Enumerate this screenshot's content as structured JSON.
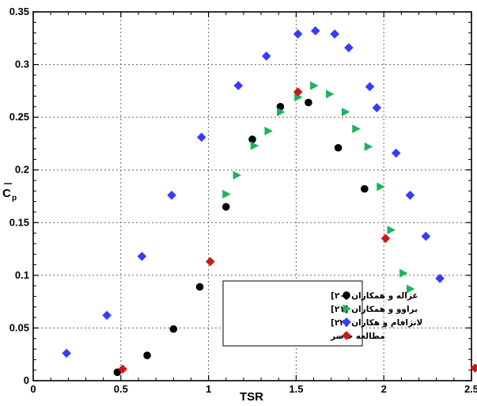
{
  "chart_data": {
    "type": "scatter",
    "xlabel": "TSR",
    "ylabel_main": "C",
    "ylabel_sub": "p",
    "xlim": [
      0,
      2.5
    ],
    "ylim": [
      0,
      0.35
    ],
    "xticks": [
      "0",
      "0.5",
      "1",
      "1.5",
      "2",
      "2.5"
    ],
    "yticks": [
      "0",
      "0.05",
      "0.1",
      "0.15",
      "0.2",
      "0.25",
      "0.3",
      "0.35"
    ],
    "grid": true,
    "legend_position": "bottom-center",
    "series": [
      {
        "name": "غزاله و همکاران [۲۰]",
        "marker": "circle",
        "color": "#000000",
        "points": [
          [
            0.48,
            0.008
          ],
          [
            0.65,
            0.024
          ],
          [
            0.8,
            0.049
          ],
          [
            0.95,
            0.089
          ],
          [
            1.1,
            0.165
          ],
          [
            1.25,
            0.229
          ],
          [
            1.41,
            0.26
          ],
          [
            1.57,
            0.264
          ],
          [
            1.74,
            0.221
          ],
          [
            1.89,
            0.182
          ]
        ]
      },
      {
        "name": "براوو و همکاران [۲۱]",
        "marker": "triangle-right",
        "color": "#1db35c",
        "points": [
          [
            1.1,
            0.177
          ],
          [
            1.16,
            0.195
          ],
          [
            1.26,
            0.223
          ],
          [
            1.34,
            0.237
          ],
          [
            1.41,
            0.255
          ],
          [
            1.51,
            0.269
          ],
          [
            1.6,
            0.28
          ],
          [
            1.69,
            0.272
          ],
          [
            1.78,
            0.255
          ],
          [
            1.84,
            0.239
          ],
          [
            1.91,
            0.222
          ],
          [
            1.98,
            0.184
          ],
          [
            2.04,
            0.143
          ],
          [
            2.11,
            0.102
          ],
          [
            2.15,
            0.087
          ]
        ]
      },
      {
        "name": "لانژافام و هکاران [۲۲]",
        "marker": "diamond",
        "color": "#3a3aff",
        "points": [
          [
            0.19,
            0.026
          ],
          [
            0.42,
            0.062
          ],
          [
            0.62,
            0.118
          ],
          [
            0.79,
            0.176
          ],
          [
            0.96,
            0.231
          ],
          [
            1.17,
            0.28
          ],
          [
            1.33,
            0.308
          ],
          [
            1.51,
            0.329
          ],
          [
            1.61,
            0.332
          ],
          [
            1.72,
            0.329
          ],
          [
            1.8,
            0.316
          ],
          [
            1.92,
            0.279
          ],
          [
            1.96,
            0.259
          ],
          [
            2.07,
            0.216
          ],
          [
            2.15,
            0.176
          ],
          [
            2.24,
            0.137
          ],
          [
            2.32,
            0.097
          ]
        ]
      },
      {
        "name": "مطالعه حاضر",
        "marker": "diamond",
        "color": "#d01818",
        "points": [
          [
            0.51,
            0.011
          ],
          [
            1.01,
            0.113
          ],
          [
            1.51,
            0.274
          ],
          [
            2.01,
            0.135
          ],
          [
            2.52,
            0.012
          ]
        ]
      }
    ]
  }
}
